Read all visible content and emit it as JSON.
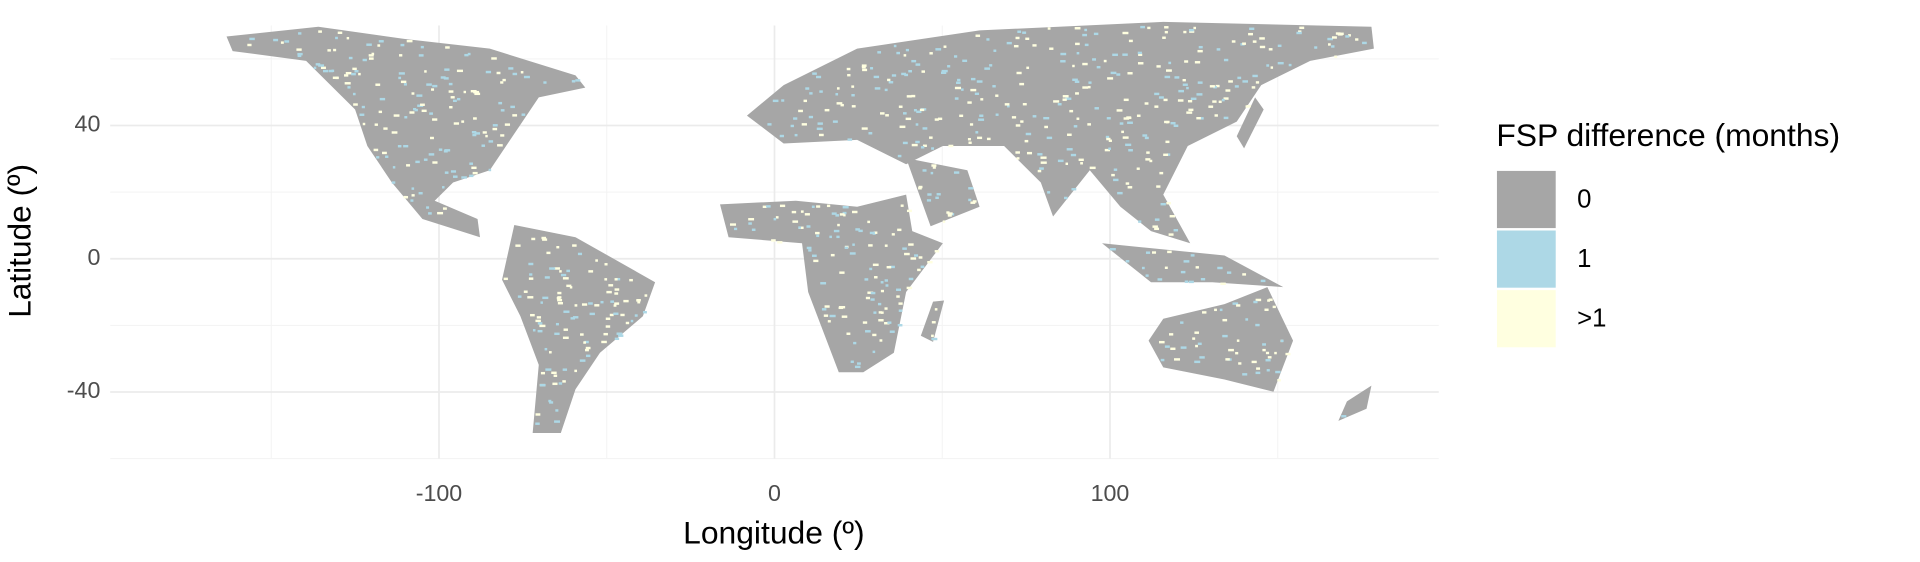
{
  "chart_data": {
    "type": "map",
    "x_label": "Longitude (º)",
    "y_label": "Latitude (º)",
    "xlim": [
      -198,
      198
    ],
    "ylim": [
      -60,
      70
    ],
    "xticks": [
      -100,
      0,
      100
    ],
    "yticks": [
      -40,
      0,
      40
    ],
    "grid": true,
    "legend": {
      "title": "FSP difference (months)",
      "position": "right",
      "items": [
        {
          "label": "0",
          "color": "#a6a6a6"
        },
        {
          "label": "1",
          "color": "#add8e6"
        },
        {
          "label": ">1",
          "color": "#ffffe0"
        }
      ]
    }
  }
}
